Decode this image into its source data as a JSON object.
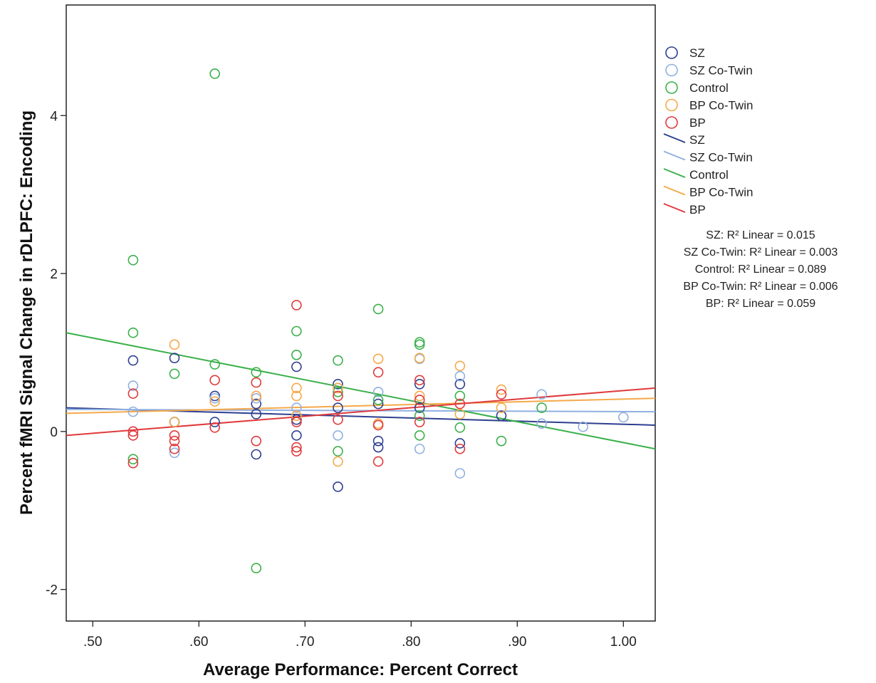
{
  "chart_data": {
    "type": "scatter",
    "title": "",
    "xlabel": "Average Performance: Percent Correct",
    "ylabel": "Percent fMRI Signal Change in rDLPFC: Encoding",
    "xlim": [
      0.475,
      1.03
    ],
    "ylim": [
      -2.4,
      5.4
    ],
    "x_ticks": [
      0.5,
      0.6,
      0.7,
      0.8,
      0.9,
      1.0
    ],
    "x_tick_labels": [
      ".50",
      ".60",
      ".70",
      ".80",
      ".90",
      "1.00"
    ],
    "y_ticks": [
      -2,
      0,
      2,
      4
    ],
    "y_tick_labels": [
      "-2",
      "0",
      "2",
      "4"
    ],
    "grid": false,
    "legend_position": "right",
    "series": [
      {
        "name": "SZ",
        "color": "#2e3f8f",
        "points": [
          [
            0.538,
            0.9
          ],
          [
            0.577,
            0.93
          ],
          [
            0.577,
            0.12
          ],
          [
            0.615,
            0.45
          ],
          [
            0.615,
            0.12
          ],
          [
            0.654,
            0.35
          ],
          [
            0.654,
            0.22
          ],
          [
            0.654,
            -0.29
          ],
          [
            0.692,
            0.82
          ],
          [
            0.692,
            0.15
          ],
          [
            0.692,
            -0.05
          ],
          [
            0.731,
            0.6
          ],
          [
            0.731,
            0.3
          ],
          [
            0.731,
            -0.7
          ],
          [
            0.769,
            0.35
          ],
          [
            0.769,
            -0.12
          ],
          [
            0.769,
            -0.2
          ],
          [
            0.808,
            0.6
          ],
          [
            0.808,
            0.3
          ],
          [
            0.846,
            0.6
          ],
          [
            0.846,
            -0.15
          ],
          [
            0.885,
            0.2
          ]
        ],
        "fit": [
          0.3,
          0.08
        ],
        "r2_label": "SZ: R² Linear = 0.015"
      },
      {
        "name": "SZ Co-Twin",
        "color": "#8fb0e0",
        "points": [
          [
            0.538,
            0.58
          ],
          [
            0.538,
            0.25
          ],
          [
            0.577,
            -0.27
          ],
          [
            0.615,
            0.42
          ],
          [
            0.654,
            0.42
          ],
          [
            0.692,
            0.3
          ],
          [
            0.731,
            0.55
          ],
          [
            0.731,
            -0.05
          ],
          [
            0.769,
            0.5
          ],
          [
            0.808,
            0.92
          ],
          [
            0.808,
            -0.22
          ],
          [
            0.846,
            0.7
          ],
          [
            0.846,
            -0.53
          ],
          [
            0.923,
            0.47
          ],
          [
            0.923,
            0.1
          ],
          [
            0.962,
            0.06
          ],
          [
            1.0,
            0.18
          ]
        ],
        "fit": [
          0.28,
          0.25
        ],
        "r2_label": "SZ Co-Twin: R² Linear = 0.003"
      },
      {
        "name": "Control",
        "color": "#3ab04a",
        "points": [
          [
            0.538,
            2.17
          ],
          [
            0.538,
            1.25
          ],
          [
            0.538,
            -0.35
          ],
          [
            0.577,
            0.73
          ],
          [
            0.615,
            4.53
          ],
          [
            0.615,
            0.85
          ],
          [
            0.654,
            0.75
          ],
          [
            0.654,
            -1.73
          ],
          [
            0.692,
            1.27
          ],
          [
            0.692,
            0.97
          ],
          [
            0.731,
            0.9
          ],
          [
            0.731,
            0.5
          ],
          [
            0.731,
            -0.25
          ],
          [
            0.769,
            1.55
          ],
          [
            0.769,
            0.4
          ],
          [
            0.808,
            1.13
          ],
          [
            0.808,
            1.1
          ],
          [
            0.808,
            0.2
          ],
          [
            0.808,
            -0.05
          ],
          [
            0.846,
            0.45
          ],
          [
            0.846,
            0.05
          ],
          [
            0.885,
            -0.12
          ],
          [
            0.923,
            0.3
          ]
        ],
        "fit": [
          1.25,
          -0.22
        ],
        "r2_label": "Control: R² Linear = 0.089"
      },
      {
        "name": "BP Co-Twin",
        "color": "#f5a94a",
        "points": [
          [
            0.577,
            1.1
          ],
          [
            0.577,
            0.12
          ],
          [
            0.615,
            0.38
          ],
          [
            0.654,
            0.45
          ],
          [
            0.692,
            0.55
          ],
          [
            0.692,
            0.45
          ],
          [
            0.692,
            0.2
          ],
          [
            0.731,
            0.55
          ],
          [
            0.731,
            -0.38
          ],
          [
            0.769,
            0.92
          ],
          [
            0.769,
            0.1
          ],
          [
            0.808,
            0.93
          ],
          [
            0.808,
            0.45
          ],
          [
            0.846,
            0.83
          ],
          [
            0.846,
            0.22
          ],
          [
            0.885,
            0.3
          ],
          [
            0.885,
            0.53
          ]
        ],
        "fit": [
          0.23,
          0.42
        ],
        "r2_label": "BP Co-Twin: R² Linear = 0.006"
      },
      {
        "name": "BP",
        "color": "#e0393b",
        "points": [
          [
            0.538,
            0.48
          ],
          [
            0.538,
            0.0
          ],
          [
            0.538,
            -0.05
          ],
          [
            0.538,
            -0.4
          ],
          [
            0.577,
            -0.05
          ],
          [
            0.577,
            -0.12
          ],
          [
            0.577,
            -0.22
          ],
          [
            0.615,
            0.65
          ],
          [
            0.615,
            0.05
          ],
          [
            0.654,
            0.62
          ],
          [
            0.654,
            -0.12
          ],
          [
            0.692,
            1.6
          ],
          [
            0.692,
            0.12
          ],
          [
            0.692,
            -0.2
          ],
          [
            0.692,
            -0.25
          ],
          [
            0.731,
            0.45
          ],
          [
            0.731,
            0.15
          ],
          [
            0.769,
            0.75
          ],
          [
            0.769,
            0.08
          ],
          [
            0.769,
            -0.38
          ],
          [
            0.808,
            0.65
          ],
          [
            0.808,
            0.4
          ],
          [
            0.808,
            0.12
          ],
          [
            0.846,
            0.35
          ],
          [
            0.846,
            -0.22
          ],
          [
            0.885,
            0.47
          ]
        ],
        "fit": [
          -0.05,
          0.55
        ],
        "r2_label": "BP: R² Linear = 0.059"
      }
    ]
  }
}
